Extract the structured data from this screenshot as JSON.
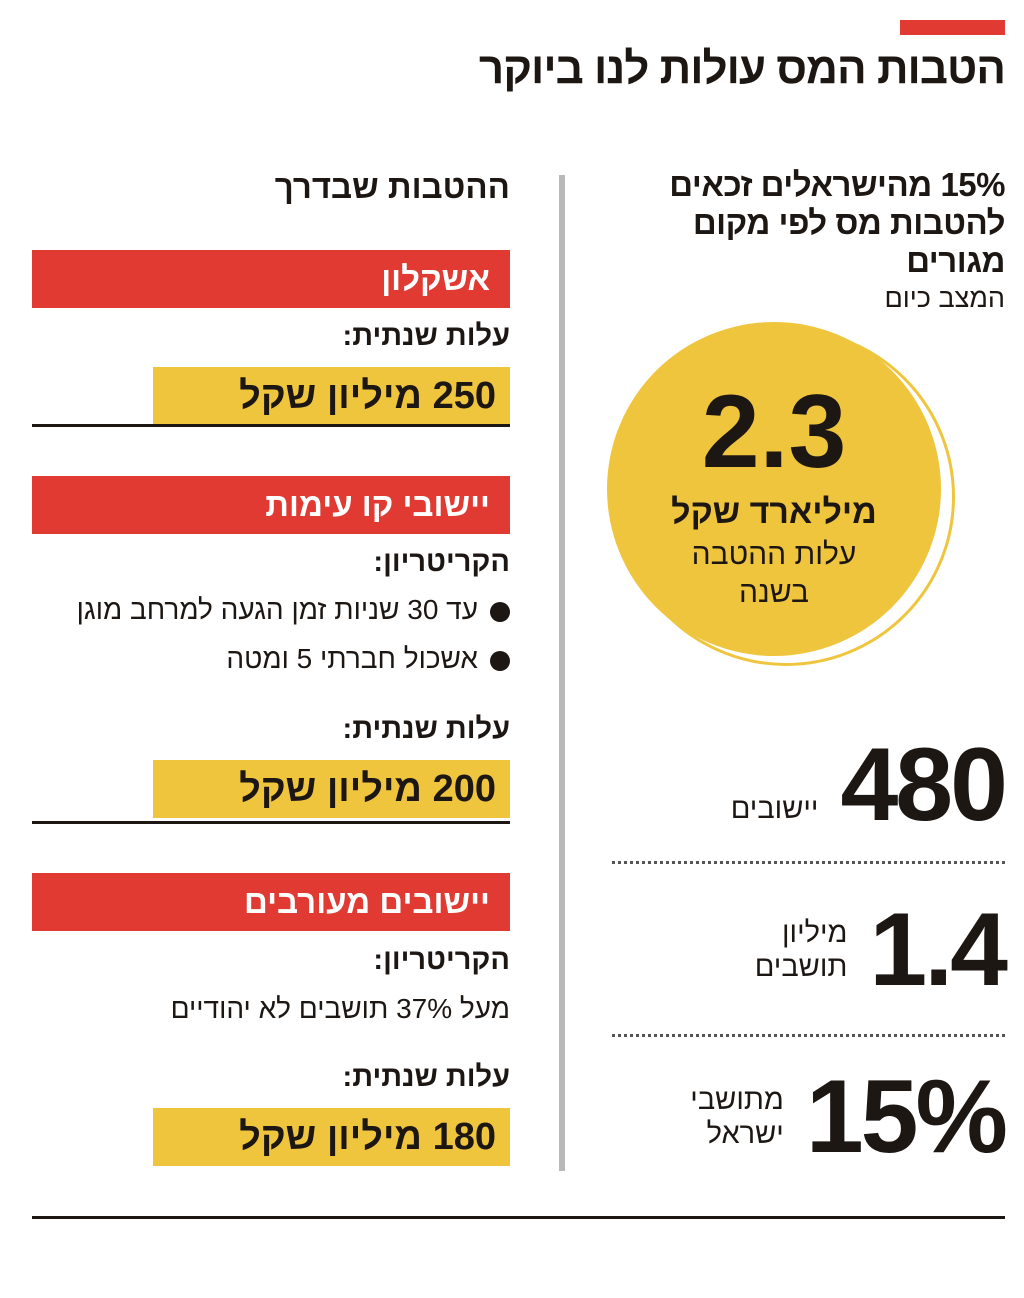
{
  "title": "הטבות המס עולות לנו ביוקר",
  "colors": {
    "accent_red": "#e03a33",
    "accent_yellow": "#f0c53e",
    "text": "#1d1714"
  },
  "current": {
    "headline_line1": "15% מהישראלים זכאים",
    "headline_line2": "להטבות מס לפי מקום מגורים",
    "subheading": "המצב כיום",
    "circle": {
      "value": "2.3",
      "unit": "מיליארד שקל",
      "description": "עלות ההטבה בשנה"
    },
    "stats": [
      {
        "value": "480",
        "label_line1": "יישובים",
        "label_line2": ""
      },
      {
        "value": "1.4",
        "label_line1": "מיליון",
        "label_line2": "תושבים"
      },
      {
        "value": "15%",
        "label_line1": "מתושבי",
        "label_line2": "ישראל"
      }
    ]
  },
  "upcoming": {
    "heading": "ההטבות שבדרך",
    "groups": [
      {
        "name": "אשקלון",
        "criteria_label": "",
        "criteria": [],
        "cost_label": "עלות שנתית:",
        "cost": "250 מיליון שקל"
      },
      {
        "name": "יישובי קו עימות",
        "criteria_label": "הקריטריון:",
        "criteria": [
          "עד 30 שניות זמן הגעה למרחב מוגן",
          "אשכול חברתי 5 ומטה"
        ],
        "cost_label": "עלות שנתית:",
        "cost": "200 מיליון שקל"
      },
      {
        "name": "יישובים מעורבים",
        "criteria_label": "הקריטריון:",
        "criteria": [
          "מעל 37% תושבים לא יהודיים"
        ],
        "cost_label": "עלות שנתית:",
        "cost": "180 מיליון שקל"
      }
    ]
  }
}
